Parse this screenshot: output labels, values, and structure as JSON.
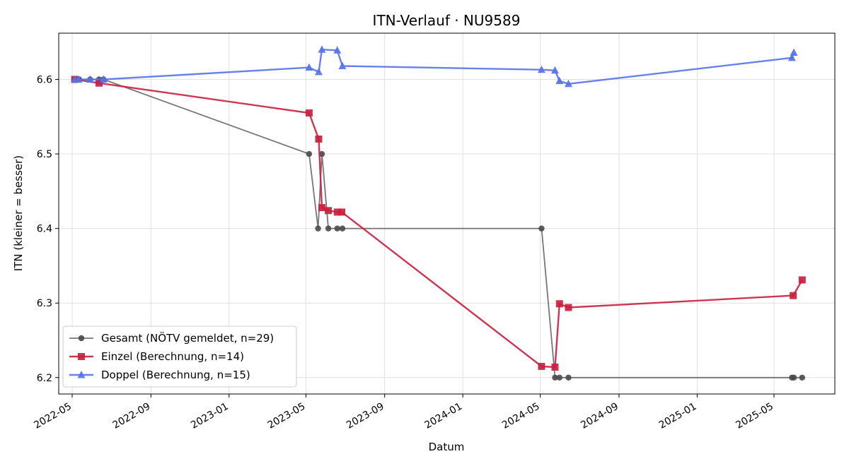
{
  "chart_data": {
    "type": "line",
    "title": "ITN-Verlauf · NU9589",
    "xlabel": "Datum",
    "ylabel": "ITN  (kleiner = besser)",
    "x_ticks": [
      "2022-05",
      "2022-09",
      "2023-01",
      "2023-05",
      "2023-09",
      "2024-01",
      "2024-05",
      "2024-09",
      "2025-01",
      "2025-05"
    ],
    "y_ticks": [
      "6.2",
      "6.3",
      "6.4",
      "6.5",
      "6.6"
    ],
    "ylim": [
      6.178,
      6.662
    ],
    "grid": true,
    "legend_position": "lower-left",
    "series": [
      {
        "name": "Gesamt (NÖTV gemeldet, n=29)",
        "color": "#4a4a4a",
        "marker": "circle",
        "points": [
          [
            "2022-05-05",
            6.6
          ],
          [
            "2022-05-12",
            6.6
          ],
          [
            "2022-05-29",
            6.6
          ],
          [
            "2022-06-12",
            6.6
          ],
          [
            "2022-06-19",
            6.6
          ],
          [
            "2023-05-06",
            6.5
          ],
          [
            "2023-05-20",
            6.4
          ],
          [
            "2023-05-26",
            6.5
          ],
          [
            "2023-06-05",
            6.4
          ],
          [
            "2023-06-19",
            6.4
          ],
          [
            "2023-06-27",
            6.4
          ],
          [
            "2024-05-03",
            6.4
          ],
          [
            "2024-05-24",
            6.2
          ],
          [
            "2024-05-31",
            6.2
          ],
          [
            "2024-06-14",
            6.2
          ],
          [
            "2025-05-29",
            6.2
          ],
          [
            "2025-06-01",
            6.2
          ],
          [
            "2025-06-14",
            6.2
          ]
        ]
      },
      {
        "name": "Einzel (Berechnung, n=14)",
        "color": "#c8203e",
        "marker": "square",
        "points": [
          [
            "2022-05-05",
            6.6
          ],
          [
            "2022-06-12",
            6.595
          ],
          [
            "2023-05-06",
            6.555
          ],
          [
            "2023-05-21",
            6.52
          ],
          [
            "2023-05-26",
            6.428
          ],
          [
            "2023-06-05",
            6.424
          ],
          [
            "2023-06-19",
            6.422
          ],
          [
            "2023-06-26",
            6.422
          ],
          [
            "2024-05-03",
            6.215
          ],
          [
            "2024-05-24",
            6.214
          ],
          [
            "2024-05-31",
            6.299
          ],
          [
            "2024-06-14",
            6.294
          ],
          [
            "2025-05-31",
            6.31
          ],
          [
            "2025-06-14",
            6.331
          ]
        ]
      },
      {
        "name": "Doppel (Berechnung, n=15)",
        "color": "#5573e8",
        "marker": "triangle",
        "points": [
          [
            "2022-05-05",
            6.6
          ],
          [
            "2022-05-11",
            6.6
          ],
          [
            "2022-05-29",
            6.6
          ],
          [
            "2022-06-19",
            6.6
          ],
          [
            "2023-05-06",
            6.616
          ],
          [
            "2023-05-21",
            6.61
          ],
          [
            "2023-05-26",
            6.64
          ],
          [
            "2023-06-19",
            6.639
          ],
          [
            "2023-06-27",
            6.618
          ],
          [
            "2024-05-03",
            6.613
          ],
          [
            "2024-05-24",
            6.612
          ],
          [
            "2024-05-31",
            6.598
          ],
          [
            "2024-06-14",
            6.594
          ],
          [
            "2025-05-29",
            6.629
          ],
          [
            "2025-06-01",
            6.636
          ]
        ]
      }
    ]
  }
}
